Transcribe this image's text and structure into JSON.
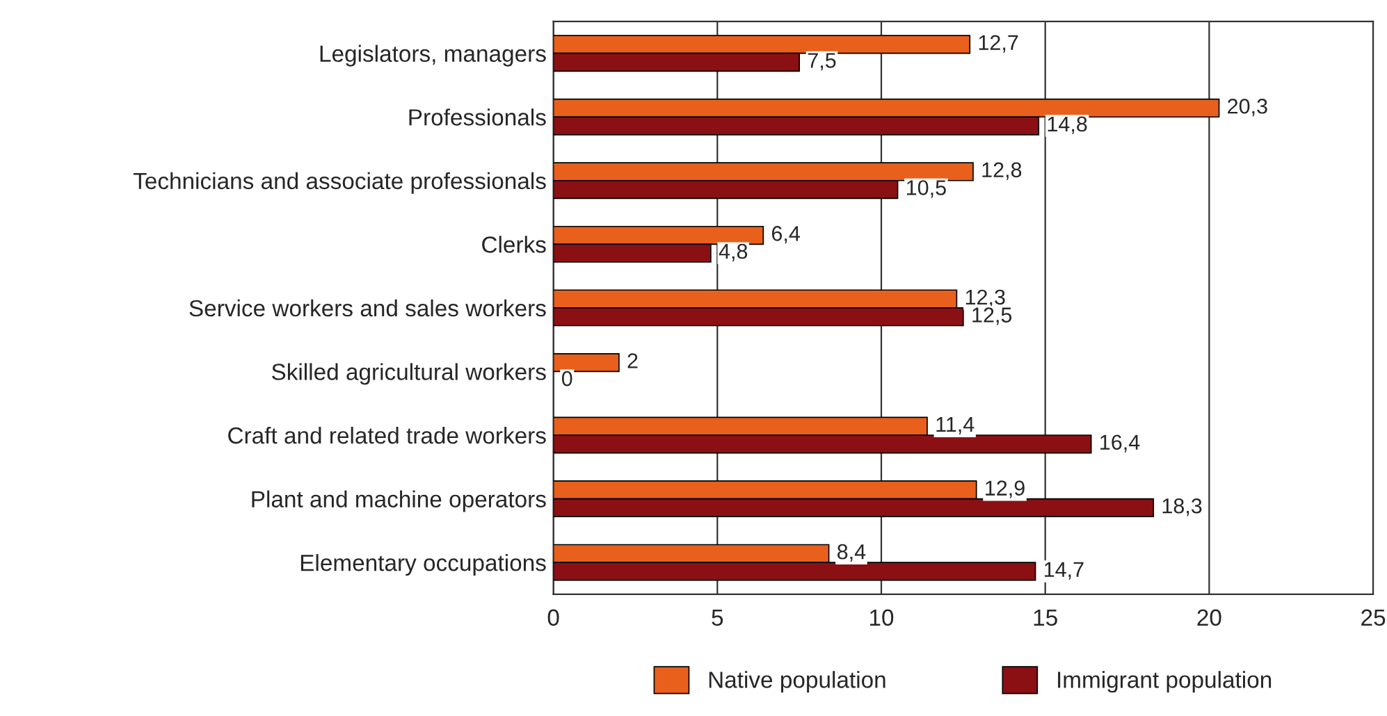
{
  "chart_data": {
    "type": "bar",
    "orientation": "horizontal",
    "categories": [
      "Legislators, managers",
      "Professionals",
      "Technicians and associate professionals",
      "Clerks",
      "Service workers and sales workers",
      "Skilled agricultural workers",
      "Craft and related trade workers",
      "Plant and machine operators",
      "Elementary occupations"
    ],
    "series": [
      {
        "name": "Native population",
        "color": "#e8601c",
        "values": [
          12.7,
          20.3,
          12.8,
          6.4,
          12.3,
          2,
          11.4,
          12.9,
          8.4
        ],
        "value_labels": [
          "12,7",
          "20,3",
          "12,8",
          "6,4",
          "12,3",
          "2",
          "11,4",
          "12,9",
          "8,4"
        ]
      },
      {
        "name": "Immigrant population",
        "color": "#8b1014",
        "values": [
          7.5,
          14.8,
          10.5,
          4.8,
          12.5,
          0,
          16.4,
          18.3,
          14.7
        ],
        "value_labels": [
          "7,5",
          "14,8",
          "10,5",
          "4,8",
          "12,5",
          "0",
          "16,4",
          "18,3",
          "14,7"
        ]
      }
    ],
    "xlim": [
      0,
      25
    ],
    "xticks": [
      0,
      5,
      10,
      15,
      20,
      25
    ],
    "grid": "x",
    "legend": "bottom"
  }
}
